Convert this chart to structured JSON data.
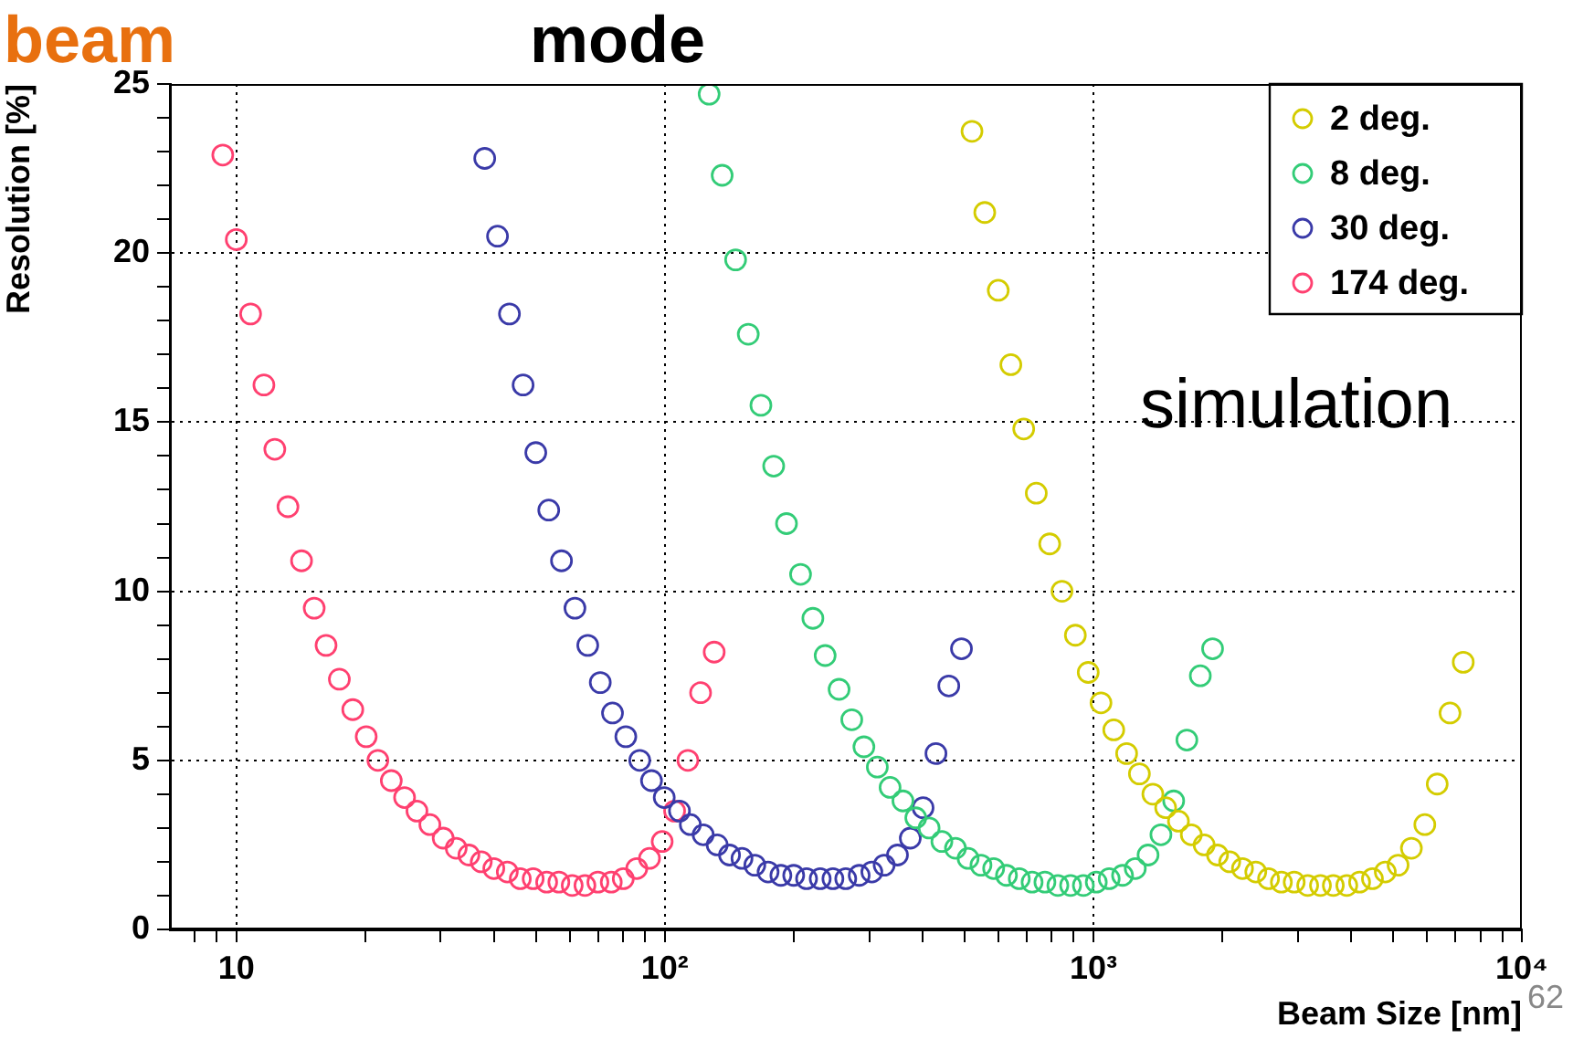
{
  "chart_data": {
    "type": "scatter",
    "xlabel": "Beam Size [nm]",
    "ylabel": "Resolution [%]",
    "log": "x",
    "grid": true,
    "legend": "top right",
    "marker": "circle",
    "xlim": [
      7,
      10000
    ],
    "xticks": [
      {
        "value": 8,
        "label": null
      },
      {
        "value": 9,
        "label": null
      },
      {
        "value": 10,
        "label": "10"
      },
      {
        "value": 20,
        "label": null
      },
      {
        "value": 30,
        "label": null
      },
      {
        "value": 40,
        "label": null
      },
      {
        "value": 50,
        "label": null
      },
      {
        "value": 60,
        "label": null
      },
      {
        "value": 70,
        "label": null
      },
      {
        "value": 80,
        "label": null
      },
      {
        "value": 90,
        "label": null
      },
      {
        "value": 100,
        "label": "10²"
      },
      {
        "value": 200,
        "label": null
      },
      {
        "value": 300,
        "label": null
      },
      {
        "value": 400,
        "label": null
      },
      {
        "value": 500,
        "label": null
      },
      {
        "value": 600,
        "label": null
      },
      {
        "value": 700,
        "label": null
      },
      {
        "value": 800,
        "label": null
      },
      {
        "value": 900,
        "label": null
      },
      {
        "value": 1000,
        "label": "10³"
      },
      {
        "value": 2000,
        "label": null
      },
      {
        "value": 3000,
        "label": null
      },
      {
        "value": 4000,
        "label": null
      },
      {
        "value": 5000,
        "label": null
      },
      {
        "value": 6000,
        "label": null
      },
      {
        "value": 7000,
        "label": null
      },
      {
        "value": 8000,
        "label": null
      },
      {
        "value": 9000,
        "label": null
      },
      {
        "value": 10000,
        "label": "10⁴"
      }
    ],
    "ylim": [
      0,
      25
    ],
    "yticks": [
      0,
      {
        "value": 1,
        "label": null
      },
      {
        "value": 2,
        "label": null
      },
      {
        "value": 3,
        "label": null
      },
      {
        "value": 4,
        "label": null
      },
      5,
      {
        "value": 6,
        "label": null
      },
      {
        "value": 7,
        "label": null
      },
      {
        "value": 8,
        "label": null
      },
      {
        "value": 9,
        "label": null
      },
      10,
      {
        "value": 11,
        "label": null
      },
      {
        "value": 12,
        "label": null
      },
      {
        "value": 13,
        "label": null
      },
      {
        "value": 14,
        "label": null
      },
      15,
      {
        "value": 16,
        "label": null
      },
      {
        "value": 17,
        "label": null
      },
      {
        "value": 18,
        "label": null
      },
      {
        "value": 19,
        "label": null
      },
      20,
      {
        "value": 21,
        "label": null
      },
      {
        "value": 22,
        "label": null
      },
      {
        "value": 23,
        "label": null
      },
      {
        "value": 24,
        "label": null
      },
      25
    ],
    "annotations": [
      "beam",
      "mode",
      "simulation",
      "62"
    ],
    "series": [
      {
        "name": "2 deg.",
        "color": "#d4cc00",
        "x": [
          521,
          558,
          600,
          642,
          688,
          736,
          791,
          845,
          908,
          973,
          1042,
          1116,
          1196,
          1281,
          1377,
          1475,
          1580,
          1693,
          1814,
          1949,
          2081,
          2229,
          2394,
          2564,
          2747,
          2943,
          3164,
          3389,
          3631,
          3904,
          4182,
          4481,
          4801,
          5143,
          5524,
          5937,
          6346,
          6798,
          7299
        ],
        "values": [
          23.6,
          21.2,
          18.9,
          16.7,
          14.8,
          12.9,
          11.4,
          10.0,
          8.7,
          7.6,
          6.7,
          5.9,
          5.2,
          4.6,
          4.0,
          3.6,
          3.2,
          2.8,
          2.5,
          2.2,
          2.0,
          1.8,
          1.7,
          1.5,
          1.4,
          1.4,
          1.3,
          1.3,
          1.3,
          1.3,
          1.4,
          1.5,
          1.7,
          1.9,
          2.4,
          3.1,
          4.3,
          6.4,
          7.9
        ]
      },
      {
        "name": "8 deg.",
        "color": "#33cc77",
        "x": [
          126.9,
          136.1,
          146.3,
          156.6,
          167.6,
          179.5,
          192.3,
          207.4,
          221.6,
          236.7,
          255.1,
          273.1,
          291.5,
          313.3,
          335.5,
          359.5,
          385.2,
          413.8,
          443.2,
          476.8,
          510.3,
          546.8,
          585.4,
          627.1,
          671.8,
          719.7,
          771.0,
          826.5,
          885,
          948,
          1016,
          1089,
          1170,
          1253,
          1342,
          1438,
          1540,
          1653,
          1777,
          1898
        ],
        "values": [
          24.7,
          22.3,
          19.8,
          17.6,
          15.5,
          13.7,
          12.0,
          10.5,
          9.2,
          8.1,
          7.1,
          6.2,
          5.4,
          4.8,
          4.2,
          3.8,
          3.3,
          3.0,
          2.6,
          2.4,
          2.1,
          1.9,
          1.8,
          1.6,
          1.5,
          1.4,
          1.4,
          1.3,
          1.3,
          1.3,
          1.4,
          1.5,
          1.6,
          1.8,
          2.2,
          2.8,
          3.8,
          5.6,
          7.5,
          8.3
        ]
      },
      {
        "name": "30 deg.",
        "color": "#3a3aa8",
        "x": [
          38.0,
          40.7,
          43.4,
          46.7,
          50.0,
          53.6,
          57.4,
          61.7,
          66.1,
          70.7,
          75.5,
          81.1,
          87.4,
          93.1,
          99.7,
          108.2,
          114.7,
          122.9,
          132.5,
          141.6,
          151.4,
          162.2,
          174.2,
          186.6,
          199.9,
          214.2,
          230.5,
          246.8,
          264.4,
          284.2,
          304.2,
          325.0,
          349.1,
          374.0,
          400.6,
          429.3,
          460.0,
          492.4
        ],
        "values": [
          22.8,
          20.5,
          18.2,
          16.1,
          14.1,
          12.4,
          10.9,
          9.5,
          8.4,
          7.3,
          6.4,
          5.7,
          5.0,
          4.4,
          3.9,
          3.5,
          3.1,
          2.8,
          2.5,
          2.2,
          2.1,
          1.9,
          1.7,
          1.6,
          1.6,
          1.5,
          1.5,
          1.5,
          1.5,
          1.6,
          1.7,
          1.9,
          2.2,
          2.7,
          3.6,
          5.2,
          7.2,
          8.3
        ]
      },
      {
        "name": "174 deg.",
        "color": "#ff4070",
        "x": [
          9.3,
          10.0,
          10.8,
          11.6,
          12.3,
          13.2,
          14.2,
          15.2,
          16.2,
          17.4,
          18.7,
          20.1,
          21.4,
          23.0,
          24.7,
          26.4,
          28.3,
          30.4,
          32.6,
          34.9,
          37.3,
          39.9,
          42.9,
          46.0,
          49.3,
          53.0,
          56.6,
          60.8,
          65.1,
          69.8,
          75.0,
          80.0,
          86.0,
          92.1,
          98.6,
          105.4,
          113.2,
          121.2,
          130.4
        ],
        "values": [
          22.9,
          20.4,
          18.2,
          16.1,
          14.2,
          12.5,
          10.9,
          9.5,
          8.4,
          7.4,
          6.5,
          5.7,
          5.0,
          4.4,
          3.9,
          3.5,
          3.1,
          2.7,
          2.4,
          2.2,
          2.0,
          1.8,
          1.7,
          1.5,
          1.5,
          1.4,
          1.4,
          1.3,
          1.3,
          1.4,
          1.4,
          1.5,
          1.8,
          2.1,
          2.6,
          3.5,
          5.0,
          7.0,
          8.2
        ]
      }
    ]
  }
}
